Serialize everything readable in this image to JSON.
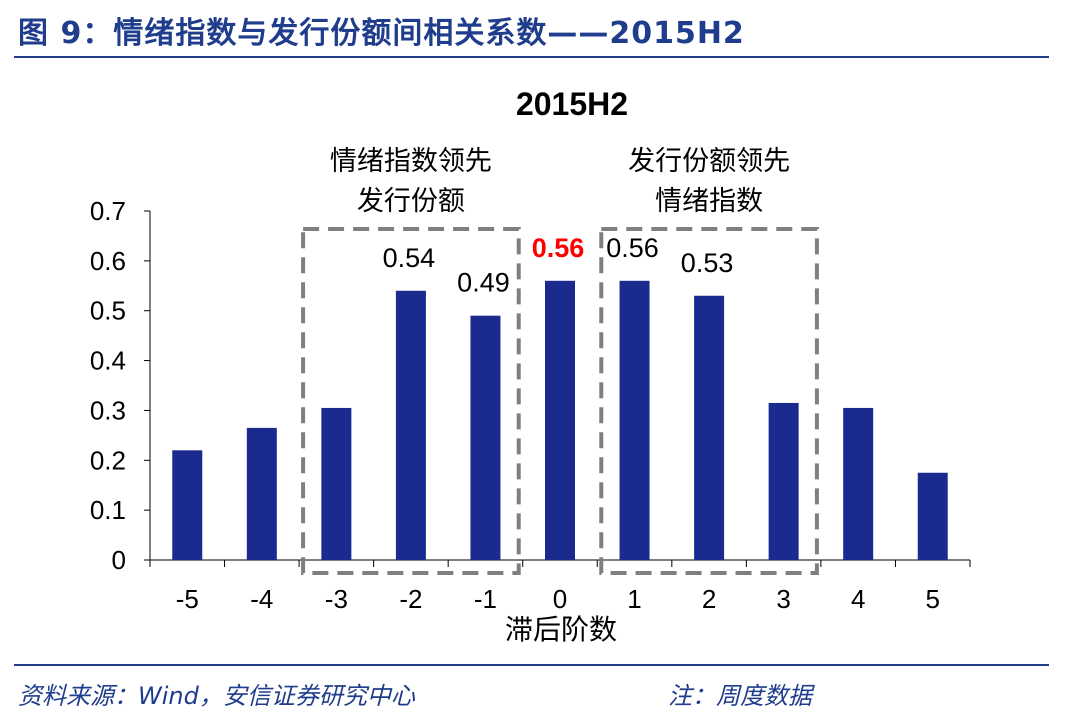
{
  "figure": {
    "title": "图 9：情绪指数与发行份额间相关系数——2015H2",
    "source": "资料来源：Wind，安信证券研究中心",
    "note": "注：周度数据"
  },
  "chart_data": {
    "type": "bar",
    "title": "2015H2",
    "xlabel": "滞后阶数",
    "ylabel": "",
    "categories": [
      "-5",
      "-4",
      "-3",
      "-2",
      "-1",
      "0",
      "1",
      "2",
      "3",
      "4",
      "5"
    ],
    "values": [
      0.22,
      0.265,
      0.305,
      0.54,
      0.49,
      0.56,
      0.56,
      0.53,
      0.315,
      0.305,
      0.175
    ],
    "ylim": [
      0,
      0.7
    ],
    "yticks": [
      "0",
      "0.1",
      "0.2",
      "0.3",
      "0.4",
      "0.5",
      "0.6",
      "0.7"
    ],
    "bar_color": "#1a2a8f",
    "grid": false,
    "data_labels": [
      {
        "index": 3,
        "text": "0.54",
        "color": "#000000",
        "bold": false
      },
      {
        "index": 4,
        "text": "0.49",
        "color": "#000000",
        "bold": false
      },
      {
        "index": 5,
        "text": "0.56",
        "color": "#ff0000",
        "bold": true
      },
      {
        "index": 6,
        "text": "0.56",
        "color": "#000000",
        "bold": false
      },
      {
        "index": 7,
        "text": "0.53",
        "color": "#000000",
        "bold": false
      }
    ],
    "annotations": [
      {
        "lines": [
          "情绪指数领先",
          "发行份额"
        ],
        "from_index": 2,
        "to_index": 4
      },
      {
        "lines": [
          "发行份额领先",
          "情绪指数"
        ],
        "from_index": 6,
        "to_index": 8
      }
    ]
  }
}
